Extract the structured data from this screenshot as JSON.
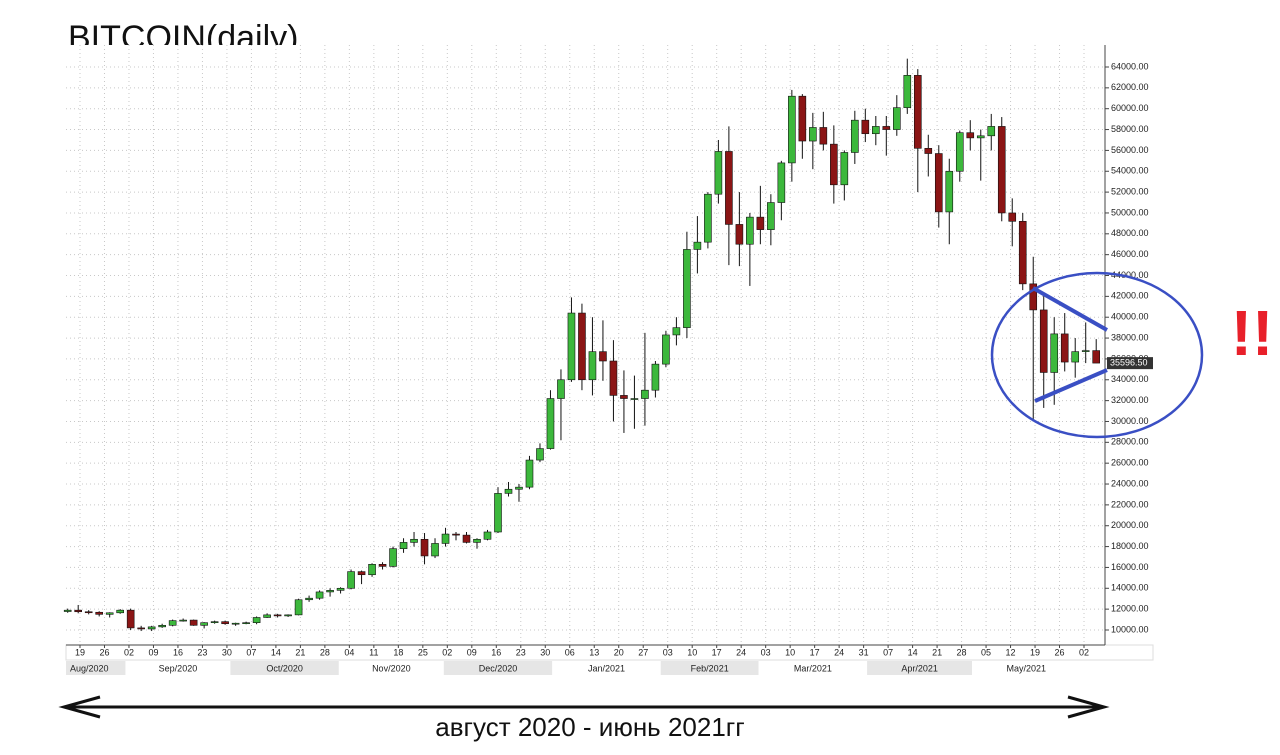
{
  "chart_data": {
    "type": "candlestick",
    "title": "BITCOIN(daily)",
    "annotation": "!!",
    "caption": "август 2020 - июнь 2021гг",
    "up_color": "#3cb83c",
    "down_color": "#8b1515",
    "grid": true,
    "xlim": [
      "2020-08-15",
      "2021-06-08"
    ],
    "ylim": [
      8560,
      66110
    ],
    "x": [
      "2020-08-15",
      "2020-08-18",
      "2020-08-21",
      "2020-08-24",
      "2020-08-27",
      "2020-08-30",
      "2020-09-02",
      "2020-09-05",
      "2020-09-08",
      "2020-09-11",
      "2020-09-14",
      "2020-09-17",
      "2020-09-20",
      "2020-09-23",
      "2020-09-26",
      "2020-09-29",
      "2020-10-02",
      "2020-10-05",
      "2020-10-08",
      "2020-10-11",
      "2020-10-14",
      "2020-10-17",
      "2020-10-20",
      "2020-10-23",
      "2020-10-26",
      "2020-10-29",
      "2020-11-01",
      "2020-11-04",
      "2020-11-07",
      "2020-11-10",
      "2020-11-13",
      "2020-11-16",
      "2020-11-19",
      "2020-11-22",
      "2020-11-25",
      "2020-11-28",
      "2020-12-01",
      "2020-12-04",
      "2020-12-07",
      "2020-12-10",
      "2020-12-13",
      "2020-12-16",
      "2020-12-19",
      "2020-12-22",
      "2020-12-25",
      "2020-12-28",
      "2020-12-31",
      "2021-01-03",
      "2021-01-06",
      "2021-01-09",
      "2021-01-12",
      "2021-01-15",
      "2021-01-18",
      "2021-01-21",
      "2021-01-24",
      "2021-01-27",
      "2021-01-30",
      "2021-02-02",
      "2021-02-05",
      "2021-02-08",
      "2021-02-11",
      "2021-02-14",
      "2021-02-17",
      "2021-02-20",
      "2021-02-23",
      "2021-02-26",
      "2021-03-01",
      "2021-03-04",
      "2021-03-07",
      "2021-03-10",
      "2021-03-13",
      "2021-03-16",
      "2021-03-19",
      "2021-03-22",
      "2021-03-25",
      "2021-03-28",
      "2021-03-31",
      "2021-04-03",
      "2021-04-06",
      "2021-04-09",
      "2021-04-12",
      "2021-04-15",
      "2021-04-18",
      "2021-04-21",
      "2021-04-24",
      "2021-04-27",
      "2021-04-30",
      "2021-05-03",
      "2021-05-06",
      "2021-05-09",
      "2021-05-12",
      "2021-05-15",
      "2021-05-18",
      "2021-05-21",
      "2021-05-24",
      "2021-05-27",
      "2021-05-30",
      "2021-06-02",
      "2021-06-05"
    ],
    "open": [
      11770,
      11900,
      11750,
      11700,
      11500,
      11650,
      11900,
      10200,
      10100,
      10300,
      10450,
      10900,
      10950,
      10450,
      10700,
      10800,
      10600,
      10650,
      10700,
      11200,
      11450,
      11350,
      11450,
      12900,
      13050,
      13650,
      13800,
      14000,
      15600,
      15300,
      16300,
      16100,
      17800,
      18400,
      18700,
      17100,
      18300,
      19200,
      19100,
      18400,
      18700,
      19400,
      23100,
      23500,
      23700,
      26300,
      27400,
      32200,
      34000,
      40400,
      34000,
      36700,
      35800,
      32500,
      32200,
      32200,
      33000,
      35500,
      38300,
      39000,
      46500,
      47200,
      51800,
      55900,
      48900,
      47000,
      49600,
      48400,
      51000,
      54800,
      61200,
      56900,
      58200,
      56600,
      52700,
      55800,
      58900,
      57600,
      58300,
      58000,
      60100,
      63200,
      56200,
      55700,
      50100,
      54000,
      57700,
      57200,
      57400,
      58300,
      50000,
      49200,
      43200,
      40700,
      34700,
      38400,
      35700,
      36700,
      36800
    ],
    "high": [
      12050,
      12400,
      11900,
      11800,
      11700,
      12000,
      12050,
      10400,
      10400,
      10600,
      11000,
      11100,
      11000,
      10750,
      10900,
      10900,
      10700,
      10800,
      11300,
      11600,
      11550,
      11500,
      13000,
      13300,
      13800,
      14000,
      14100,
      15800,
      15700,
      16400,
      16500,
      18000,
      18800,
      19400,
      19300,
      18800,
      19800,
      19400,
      19400,
      18800,
      19600,
      23700,
      24200,
      24000,
      26700,
      27900,
      33000,
      35000,
      41900,
      41300,
      40000,
      39700,
      37800,
      34900,
      34400,
      38500,
      35800,
      38700,
      40000,
      48200,
      49700,
      52000,
      57000,
      58300,
      52000,
      50000,
      52600,
      51800,
      55000,
      61800,
      61400,
      59600,
      59700,
      58400,
      56000,
      59800,
      60000,
      59300,
      59300,
      61300,
      64800,
      63800,
      57500,
      56500,
      55200,
      57900,
      58900,
      58000,
      59500,
      59200,
      51400,
      50000,
      45800,
      42300,
      40000,
      40400,
      38000,
      39500,
      37900
    ],
    "low": [
      11650,
      11600,
      11500,
      11300,
      11200,
      11550,
      10000,
      9900,
      9900,
      10200,
      10350,
      10800,
      10400,
      10150,
      10600,
      10500,
      10400,
      10550,
      10550,
      11150,
      11200,
      11250,
      11400,
      12700,
      12900,
      13200,
      13500,
      13900,
      14400,
      15100,
      15800,
      16000,
      17400,
      18000,
      16300,
      16900,
      18000,
      18600,
      18300,
      17800,
      18600,
      19300,
      22800,
      22300,
      23500,
      26100,
      27300,
      28200,
      33800,
      33000,
      32500,
      33900,
      30000,
      28900,
      29300,
      29600,
      32300,
      35200,
      37300,
      38000,
      44200,
      46600,
      50900,
      45000,
      44900,
      43000,
      47000,
      46900,
      49300,
      53000,
      55200,
      54200,
      56000,
      50900,
      51200,
      54700,
      56800,
      56500,
      55500,
      57400,
      59500,
      52000,
      53500,
      48600,
      47000,
      53000,
      56000,
      53100,
      56000,
      49200,
      46800,
      42600,
      30000,
      31300,
      31600,
      34800,
      34200,
      35600,
      35600
    ],
    "close": [
      11900,
      11750,
      11700,
      11500,
      11650,
      11900,
      10200,
      10100,
      10300,
      10450,
      10900,
      10950,
      10450,
      10700,
      10800,
      10600,
      10650,
      10700,
      11200,
      11450,
      11350,
      11450,
      12900,
      13050,
      13650,
      13800,
      14000,
      15600,
      15300,
      16300,
      16100,
      17800,
      18400,
      18700,
      17100,
      18300,
      19200,
      19100,
      18400,
      18700,
      19400,
      23100,
      23500,
      23700,
      26300,
      27400,
      32200,
      34000,
      40400,
      34000,
      36700,
      35800,
      32500,
      32200,
      32200,
      33000,
      35500,
      38300,
      39000,
      46500,
      47200,
      51800,
      55900,
      48900,
      47000,
      49600,
      48400,
      51000,
      54800,
      61200,
      56900,
      58200,
      56600,
      52700,
      55800,
      58900,
      57600,
      58300,
      58000,
      60100,
      63200,
      56200,
      55700,
      50100,
      54000,
      57700,
      57200,
      57400,
      58300,
      50000,
      49200,
      43200,
      40700,
      34700,
      38400,
      35700,
      36700,
      36800,
      35600
    ],
    "last_price": {
      "value": 35596.5,
      "label": "35596.50"
    },
    "yticks": [
      {
        "value": 10000,
        "label": "10000.00"
      },
      {
        "value": 12000,
        "label": "12000.00"
      },
      {
        "value": 14000,
        "label": "14000.00"
      },
      {
        "value": 16000,
        "label": "16000.00"
      },
      {
        "value": 18000,
        "label": "18000.00"
      },
      {
        "value": 20000,
        "label": "20000.00"
      },
      {
        "value": 22000,
        "label": "22000.00"
      },
      {
        "value": 24000,
        "label": "24000.00"
      },
      {
        "value": 26000,
        "label": "26000.00"
      },
      {
        "value": 28000,
        "label": "28000.00"
      },
      {
        "value": 30000,
        "label": "30000.00"
      },
      {
        "value": 32000,
        "label": "32000.00"
      },
      {
        "value": 34000,
        "label": "34000.00"
      },
      {
        "value": 36000,
        "label": "36000.00"
      },
      {
        "value": 38000,
        "label": "38000.00"
      },
      {
        "value": 40000,
        "label": "40000.00"
      },
      {
        "value": 42000,
        "label": "42000.00"
      },
      {
        "value": 44000,
        "label": "44000.00"
      },
      {
        "value": 46000,
        "label": "46000.00"
      },
      {
        "value": 48000,
        "label": "48000.00"
      },
      {
        "value": 50000,
        "label": "50000.00"
      },
      {
        "value": 52000,
        "label": "52000.00"
      },
      {
        "value": 54000,
        "label": "54000.00"
      },
      {
        "value": 56000,
        "label": "56000.00"
      },
      {
        "value": 58000,
        "label": "58000.00"
      },
      {
        "value": 60000,
        "label": "60000.00"
      },
      {
        "value": 62000,
        "label": "62000.00"
      },
      {
        "value": 64000,
        "label": "64000.00"
      }
    ],
    "xticks": [
      {
        "value": "2020-08-19",
        "label": "19"
      },
      {
        "value": "2020-08-26",
        "label": "26"
      },
      {
        "value": "2020-09-02",
        "label": "02"
      },
      {
        "value": "2020-09-09",
        "label": "09"
      },
      {
        "value": "2020-09-16",
        "label": "16"
      },
      {
        "value": "2020-09-23",
        "label": "23"
      },
      {
        "value": "2020-09-30",
        "label": "30"
      },
      {
        "value": "2020-10-07",
        "label": "07"
      },
      {
        "value": "2020-10-14",
        "label": "14"
      },
      {
        "value": "2020-10-21",
        "label": "21"
      },
      {
        "value": "2020-10-28",
        "label": "28"
      },
      {
        "value": "2020-11-04",
        "label": "04"
      },
      {
        "value": "2020-11-11",
        "label": "11"
      },
      {
        "value": "2020-11-18",
        "label": "18"
      },
      {
        "value": "2020-11-25",
        "label": "25"
      },
      {
        "value": "2020-12-02",
        "label": "02"
      },
      {
        "value": "2020-12-09",
        "label": "09"
      },
      {
        "value": "2020-12-16",
        "label": "16"
      },
      {
        "value": "2020-12-23",
        "label": "23"
      },
      {
        "value": "2020-12-30",
        "label": "30"
      },
      {
        "value": "2021-01-06",
        "label": "06"
      },
      {
        "value": "2021-01-13",
        "label": "13"
      },
      {
        "value": "2021-01-20",
        "label": "20"
      },
      {
        "value": "2021-01-27",
        "label": "27"
      },
      {
        "value": "2021-02-03",
        "label": "03"
      },
      {
        "value": "2021-02-10",
        "label": "10"
      },
      {
        "value": "2021-02-17",
        "label": "17"
      },
      {
        "value": "2021-02-24",
        "label": "24"
      },
      {
        "value": "2021-03-03",
        "label": "03"
      },
      {
        "value": "2021-03-10",
        "label": "10"
      },
      {
        "value": "2021-03-17",
        "label": "17"
      },
      {
        "value": "2021-03-24",
        "label": "24"
      },
      {
        "value": "2021-03-31",
        "label": "31"
      },
      {
        "value": "2021-04-07",
        "label": "07"
      },
      {
        "value": "2021-04-14",
        "label": "14"
      },
      {
        "value": "2021-04-21",
        "label": "21"
      },
      {
        "value": "2021-04-28",
        "label": "28"
      },
      {
        "value": "2021-05-05",
        "label": "05"
      },
      {
        "value": "2021-05-12",
        "label": "12"
      },
      {
        "value": "2021-05-19",
        "label": "19"
      },
      {
        "value": "2021-05-26",
        "label": "26"
      },
      {
        "value": "2021-06-02",
        "label": "02"
      }
    ],
    "months": [
      {
        "value": "2020-08",
        "label": "Aug/2020"
      },
      {
        "value": "2020-09",
        "label": "Sep/2020"
      },
      {
        "value": "2020-10",
        "label": "Oct/2020"
      },
      {
        "value": "2020-11",
        "label": "Nov/2020"
      },
      {
        "value": "2020-12",
        "label": "Dec/2020"
      },
      {
        "value": "2021-01",
        "label": "Jan/2021"
      },
      {
        "value": "2021-02",
        "label": "Feb/2021"
      },
      {
        "value": "2021-03",
        "label": "Mar/2021"
      },
      {
        "value": "2021-04",
        "label": "Apr/2021"
      },
      {
        "value": "2021-05",
        "label": "May/2021"
      }
    ]
  }
}
